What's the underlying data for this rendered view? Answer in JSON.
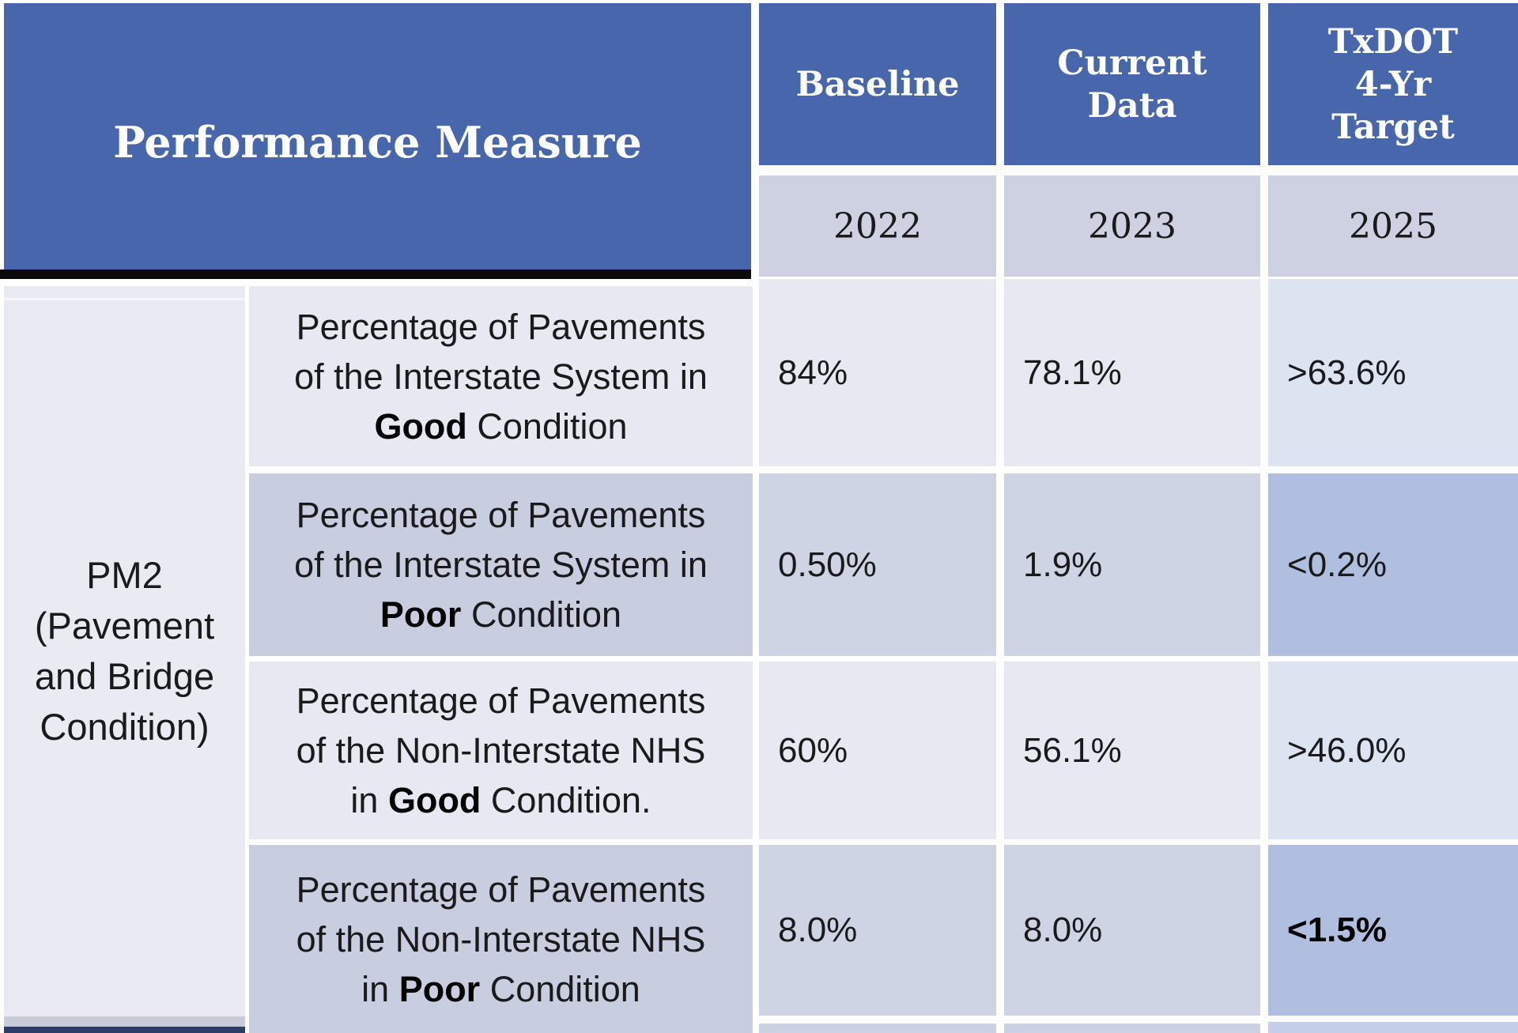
{
  "table": {
    "header": {
      "performance_measure": "Performance Measure",
      "baseline_lines": [
        "Baseline"
      ],
      "current_lines": [
        "Current",
        "Data"
      ],
      "target_lines": [
        "TxDOT",
        "4-Yr",
        "Target"
      ],
      "year_baseline": "2022",
      "year_current": "2023",
      "year_target": "2025"
    },
    "row_group": {
      "lines": [
        "PM2",
        "(Pavement",
        "and Bridge",
        "Condition)"
      ]
    },
    "rows": [
      {
        "desc_line1": "Percentage of Pavements",
        "desc_line2": "of the Interstate System in",
        "desc_line3_pre": "",
        "desc_line3_bold": "Good",
        "desc_line3_post": " Condition",
        "baseline": "84%",
        "current": "78.1%",
        "target": ">63.6%"
      },
      {
        "desc_line1": "Percentage of Pavements",
        "desc_line2": "of the Interstate System in",
        "desc_line3_pre": "",
        "desc_line3_bold": "Poor",
        "desc_line3_post": " Condition",
        "baseline": "0.50%",
        "current": "1.9%",
        "target": "<0.2%"
      },
      {
        "desc_line1": "Percentage of Pavements",
        "desc_line2": "of the Non-Interstate NHS",
        "desc_line3_pre": "in ",
        "desc_line3_bold": "Good",
        "desc_line3_post": " Condition.",
        "baseline": "60%",
        "current": "56.1%",
        "target": ">46.0%"
      },
      {
        "desc_line1": "Percentage of Pavements",
        "desc_line2": "of the Non-Interstate NHS",
        "desc_line3_pre": "in ",
        "desc_line3_bold": "Poor",
        "desc_line3_post": " Condition",
        "baseline": "8.0%",
        "current": "8.0%",
        "target": "<1.5%"
      }
    ],
    "colors": {
      "header_blue": "#4766ab",
      "year_row_bg": "#cdd1e2",
      "row_light_bg": "#e7e8f1",
      "row_dark_values_bg": "#cfd4e4",
      "row_dark_desc_bg": "#c8cde0",
      "pm_column_bg": "#e9eaf2",
      "target_light_bg": "#dce3f1",
      "target_dark_bg": "#b0bedf",
      "divider_bar": "#0a0a0a",
      "next_row_edge_navy": "#2e3c68"
    }
  }
}
